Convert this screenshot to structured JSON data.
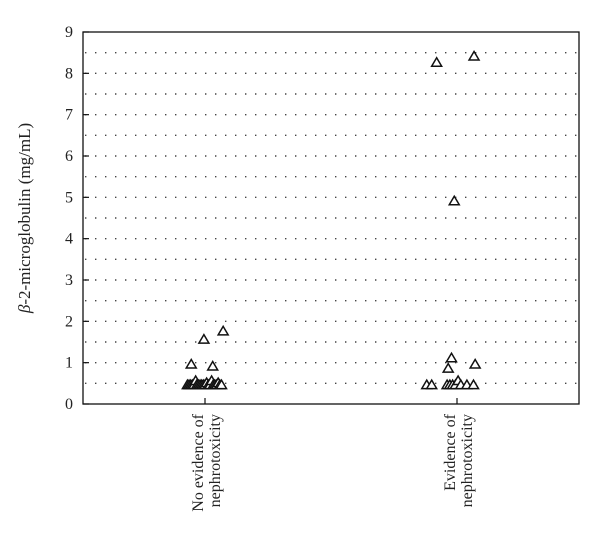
{
  "chart_data": {
    "type": "scatter",
    "title": "",
    "xlabel": "",
    "ylabel": "β-2-microglobulin (mg/mL)",
    "ylabel_greek": "β",
    "ylabel_rest": "-2-microglobulin (mg/mL)",
    "ylim": [
      0,
      9
    ],
    "yticks": [
      "0",
      "1",
      "2",
      "3",
      "4",
      "5",
      "6",
      "7",
      "8",
      "9"
    ],
    "grid": "horizontal dotted",
    "legend": "none",
    "marker": "open-triangle",
    "categories": [
      {
        "line1": "No evidence of",
        "line2": "nephrotoxicity"
      },
      {
        "line1": "Evidence of",
        "line2": "nephrotoxicity"
      }
    ],
    "points": [
      {
        "group": 0,
        "jitter": -0.32,
        "y": 0.45
      },
      {
        "group": 0,
        "jitter": -0.29,
        "y": 0.45
      },
      {
        "group": 0,
        "jitter": -0.26,
        "y": 0.45
      },
      {
        "group": 0,
        "jitter": -0.23,
        "y": 0.45
      },
      {
        "group": 0,
        "jitter": -0.2,
        "y": 0.45
      },
      {
        "group": 0,
        "jitter": -0.17,
        "y": 0.55
      },
      {
        "group": 0,
        "jitter": -0.15,
        "y": 0.45
      },
      {
        "group": 0,
        "jitter": -0.12,
        "y": 0.45
      },
      {
        "group": 0,
        "jitter": -0.09,
        "y": 0.45
      },
      {
        "group": 0,
        "jitter": -0.06,
        "y": 0.45
      },
      {
        "group": 0,
        "jitter": -0.03,
        "y": 0.45
      },
      {
        "group": 0,
        "jitter": 0.0,
        "y": 0.45
      },
      {
        "group": 0,
        "jitter": 0.03,
        "y": 0.5
      },
      {
        "group": 0,
        "jitter": 0.06,
        "y": 0.45
      },
      {
        "group": 0,
        "jitter": 0.09,
        "y": 0.45
      },
      {
        "group": 0,
        "jitter": 0.12,
        "y": 0.55
      },
      {
        "group": 0,
        "jitter": 0.15,
        "y": 0.45
      },
      {
        "group": 0,
        "jitter": 0.18,
        "y": 0.45
      },
      {
        "group": 0,
        "jitter": 0.21,
        "y": 0.45
      },
      {
        "group": 0,
        "jitter": 0.24,
        "y": 0.5
      },
      {
        "group": 0,
        "jitter": 0.27,
        "y": 0.45
      },
      {
        "group": 0,
        "jitter": 0.3,
        "y": 0.45
      },
      {
        "group": 0,
        "jitter": -0.25,
        "y": 0.95
      },
      {
        "group": 0,
        "jitter": -0.02,
        "y": 1.55
      },
      {
        "group": 0,
        "jitter": 0.14,
        "y": 0.9
      },
      {
        "group": 0,
        "jitter": 0.33,
        "y": 1.75
      },
      {
        "group": 1,
        "jitter": -0.55,
        "y": 0.45
      },
      {
        "group": 1,
        "jitter": -0.46,
        "y": 0.45
      },
      {
        "group": 1,
        "jitter": -0.18,
        "y": 0.45
      },
      {
        "group": 1,
        "jitter": -0.13,
        "y": 0.45
      },
      {
        "group": 1,
        "jitter": -0.08,
        "y": 0.45
      },
      {
        "group": 1,
        "jitter": -0.03,
        "y": 0.45
      },
      {
        "group": 1,
        "jitter": 0.02,
        "y": 0.55
      },
      {
        "group": 1,
        "jitter": 0.07,
        "y": 0.45
      },
      {
        "group": 1,
        "jitter": 0.18,
        "y": 0.45
      },
      {
        "group": 1,
        "jitter": 0.3,
        "y": 0.45
      },
      {
        "group": 1,
        "jitter": -0.16,
        "y": 0.85
      },
      {
        "group": 1,
        "jitter": -0.1,
        "y": 1.1
      },
      {
        "group": 1,
        "jitter": 0.33,
        "y": 0.95
      },
      {
        "group": 1,
        "jitter": -0.05,
        "y": 4.9
      },
      {
        "group": 1,
        "jitter": -0.37,
        "y": 8.25
      },
      {
        "group": 1,
        "jitter": 0.31,
        "y": 8.4
      }
    ]
  }
}
